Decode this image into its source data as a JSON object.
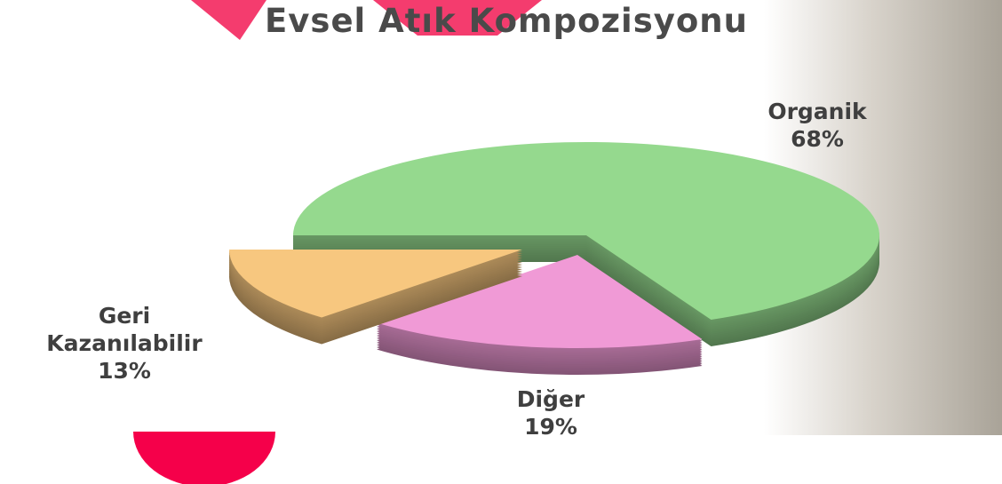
{
  "chart_data": {
    "type": "pie",
    "title": "Evsel Atık Kompozisyonu",
    "categories": [
      "Organik",
      "Diğer",
      "Geri Kazanılabilir"
    ],
    "values": [
      68,
      19,
      13
    ],
    "value_labels": [
      "68%",
      "19%",
      "13%"
    ],
    "colors": [
      "#95d98e",
      "#f09ad6",
      "#f7c77f"
    ]
  }
}
